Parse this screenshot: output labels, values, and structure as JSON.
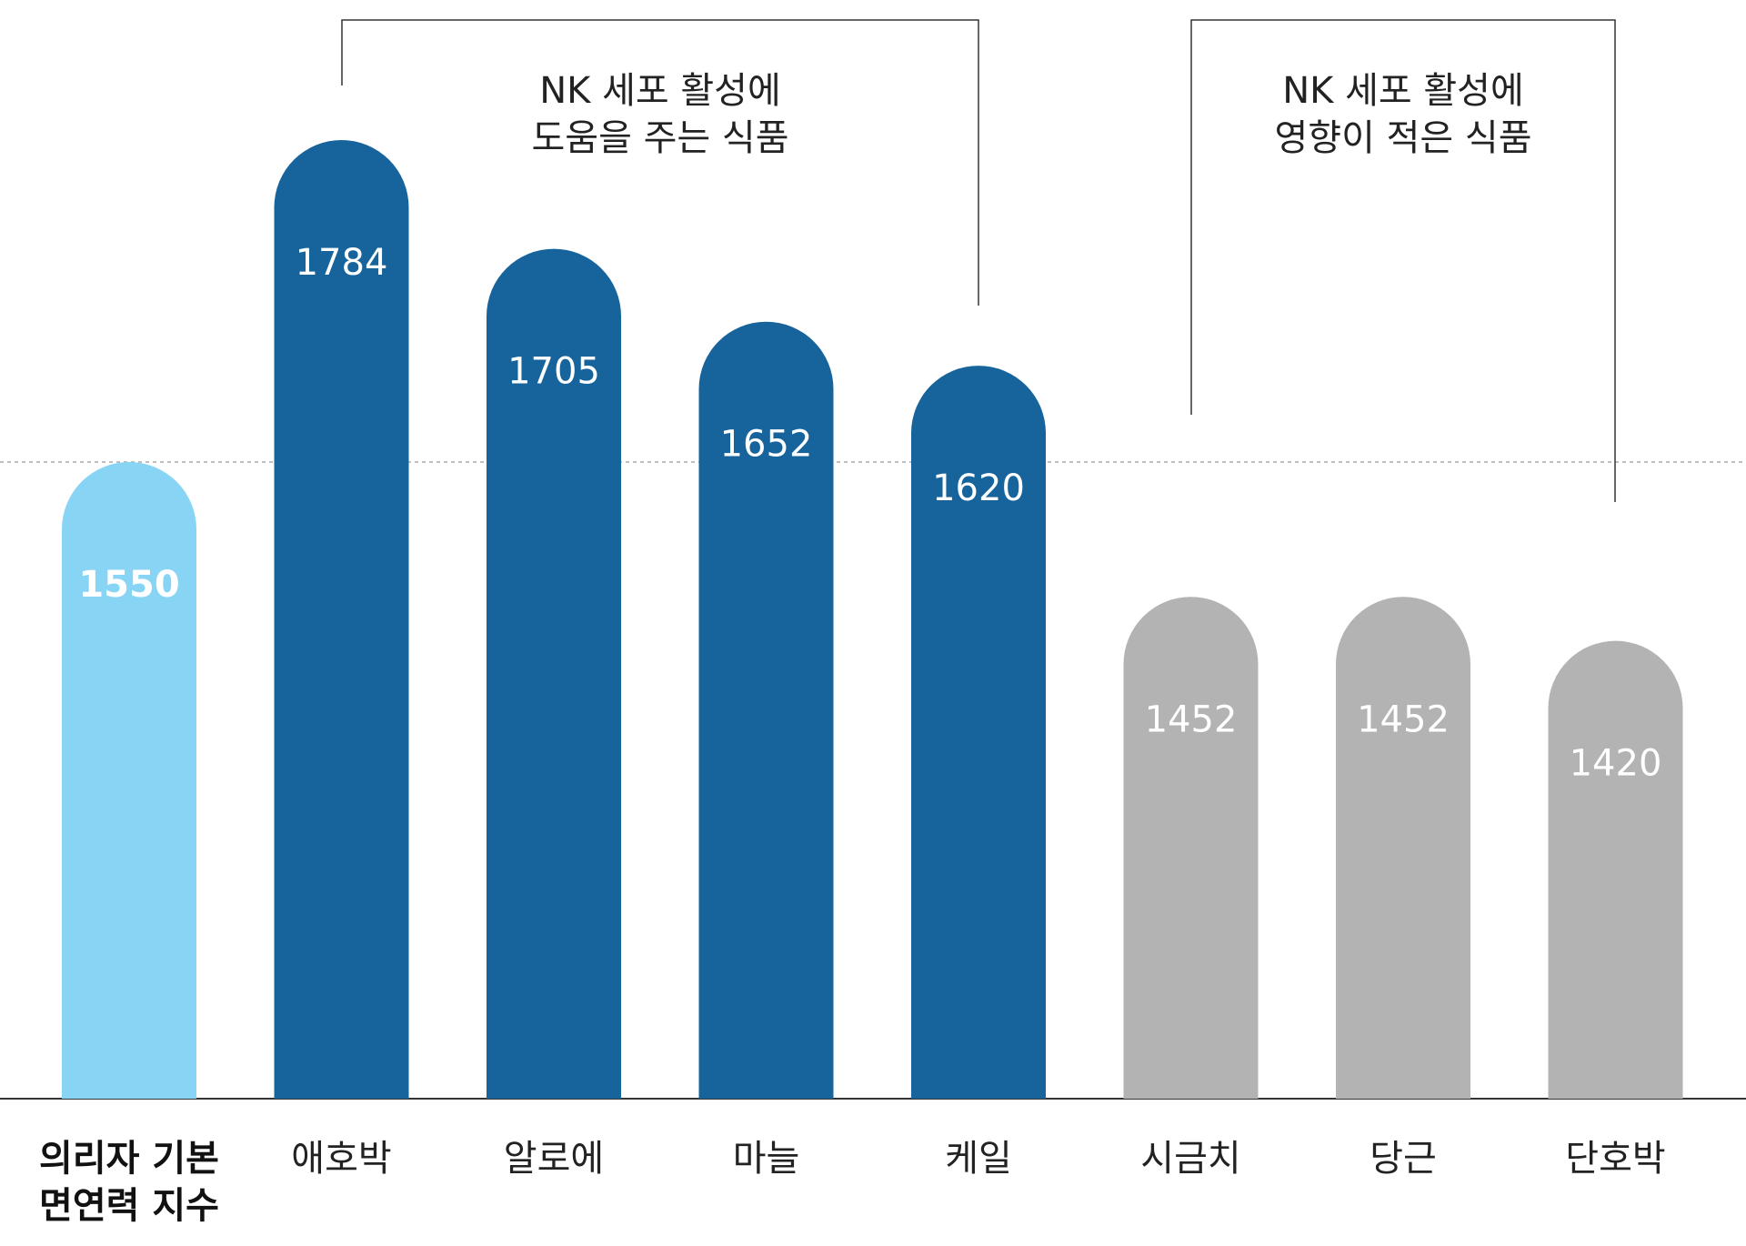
{
  "chart_data": {
    "type": "bar",
    "categories": [
      [
        "의리자 기본",
        "면연력 지수"
      ],
      [
        "애호박"
      ],
      [
        "알로에"
      ],
      [
        "마늘"
      ],
      [
        "케일"
      ],
      [
        "시금치"
      ],
      [
        "당근"
      ],
      [
        "단호박"
      ]
    ],
    "values": [
      1550,
      1784,
      1705,
      1652,
      1620,
      1452,
      1452,
      1420
    ],
    "value_labels": [
      "1550",
      "1784",
      "1705",
      "1652",
      "1620",
      "1452",
      "1452",
      "1420"
    ],
    "bar_colors": [
      "#87D4F5",
      "#17649C",
      "#17649C",
      "#17649C",
      "#17649C",
      "#B3B3B3",
      "#B3B3B3",
      "#B3B3B3"
    ],
    "baseline": 1550,
    "ylim": [
      900,
      1800
    ],
    "groups": [
      {
        "label": [
          "NK 세포 활성에",
          "도움을 주는 식품"
        ],
        "from": 1,
        "to": 4
      },
      {
        "label": [
          "NK 세포 활성에",
          "영향이 적은 식품"
        ],
        "from": 5,
        "to": 7
      }
    ],
    "grid": false,
    "title": "",
    "xlabel": "",
    "ylabel": ""
  }
}
